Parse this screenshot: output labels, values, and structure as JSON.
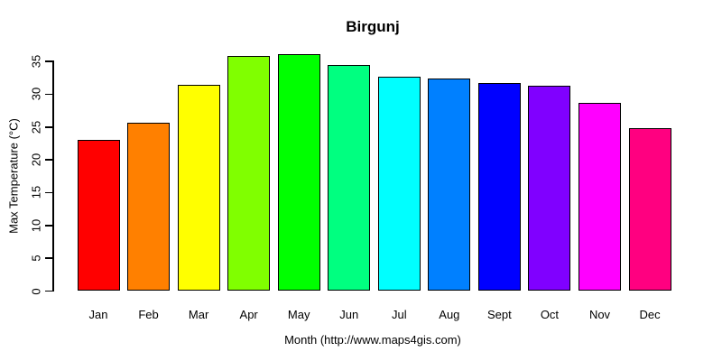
{
  "chart_data": {
    "type": "bar",
    "title": "Birgunj",
    "xlabel": "Month (http://www.maps4gis.com)",
    "ylabel": "Max Temperature (°C)",
    "categories": [
      "Jan",
      "Feb",
      "Mar",
      "Apr",
      "May",
      "Jun",
      "Jul",
      "Aug",
      "Sept",
      "Oct",
      "Nov",
      "Dec"
    ],
    "values": [
      23.0,
      25.6,
      31.4,
      35.8,
      36.1,
      34.5,
      32.7,
      32.4,
      31.7,
      31.3,
      28.7,
      24.8
    ],
    "bar_colors": [
      "#FF0000",
      "#FF8000",
      "#FFFF00",
      "#80FF00",
      "#00FF00",
      "#00FF80",
      "#00FFFF",
      "#0080FF",
      "#0000FF",
      "#8000FF",
      "#FF00FF",
      "#FF0080"
    ],
    "bar_border_color": "#000000",
    "yticks": [
      0,
      5,
      10,
      15,
      20,
      25,
      30,
      35
    ],
    "ylim": [
      0,
      35
    ],
    "grid": false,
    "legend": "none",
    "background": "#FFFFFF",
    "text_color": "#000000"
  }
}
